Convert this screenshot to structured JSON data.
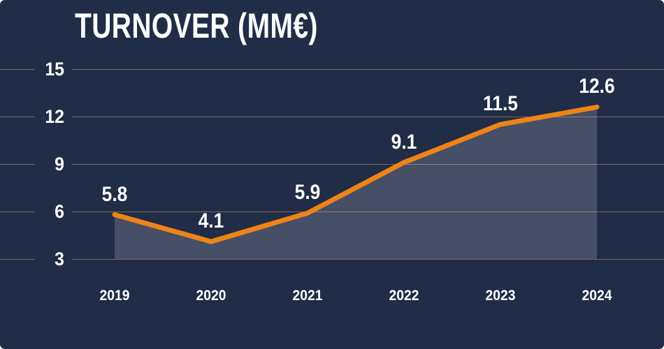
{
  "chart_data": {
    "type": "area",
    "title": "TURNOVER (MM€)",
    "categories": [
      "2019",
      "2020",
      "2021",
      "2022",
      "2023",
      "2024"
    ],
    "values": [
      5.8,
      4.1,
      5.9,
      9.1,
      11.5,
      12.6
    ],
    "value_labels": [
      "5.8",
      "4.1",
      "5.9",
      "9.1",
      "11.5",
      "12.6"
    ],
    "yticks": [
      3,
      6,
      9,
      12,
      15
    ],
    "ylim": [
      3,
      16
    ],
    "grid": true,
    "legend": false,
    "xlabel": "",
    "ylabel": "",
    "colors": {
      "background": "#212c47",
      "line": "#ee8418",
      "area_fill": "rgba(255,255,255,0.17)",
      "gridline": "rgba(199,162,87,0.55)",
      "text": "#ffffff"
    }
  }
}
